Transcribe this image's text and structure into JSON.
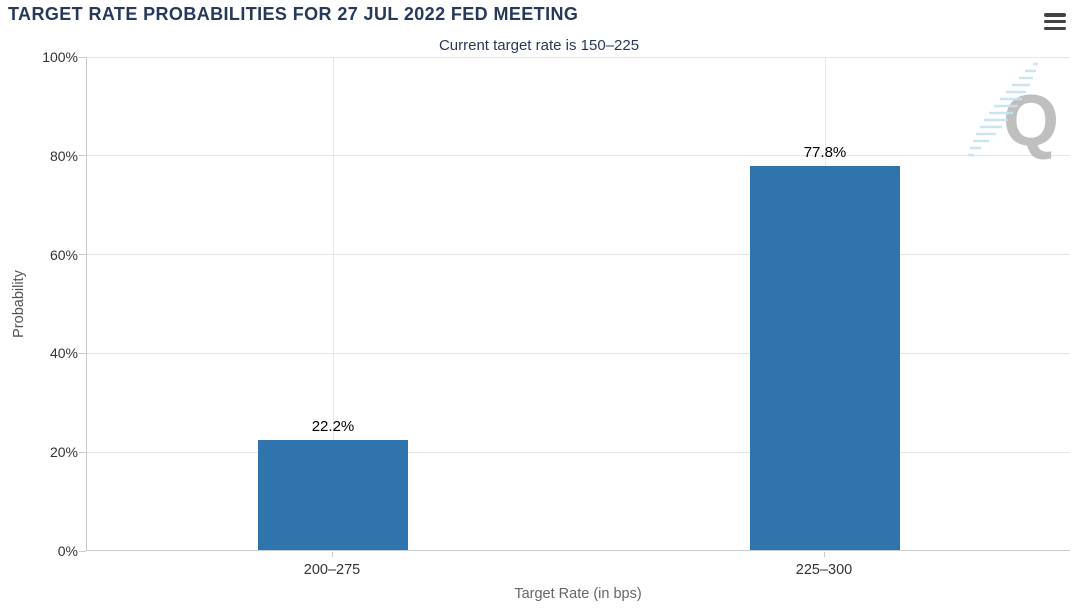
{
  "chart_data": {
    "type": "bar",
    "title": "TARGET RATE PROBABILITIES FOR 27 JUL 2022 FED MEETING",
    "subtitle": "Current target rate is 150–225",
    "categories": [
      "200–275",
      "225–300"
    ],
    "values": [
      22.2,
      77.8
    ],
    "value_labels": [
      "22.2%",
      "77.8%"
    ],
    "xlabel": "Target Rate (in bps)",
    "ylabel": "Probability",
    "ylim": [
      0,
      100
    ],
    "y_ticks": [
      0,
      20,
      40,
      60,
      80,
      100
    ],
    "y_tick_labels": [
      "0%",
      "20%",
      "40%",
      "60%",
      "80%",
      "100%"
    ],
    "grid": true,
    "legend_position": "none",
    "bar_color": "#2f74ad",
    "gridline_color": "#e6e6e6",
    "axis_line_color": "#c6cbd0",
    "tick_label_color": "#333333",
    "axis_title_color": "#666666",
    "data_label_color": "#000000",
    "title_color": "#26395b"
  },
  "menu": {
    "icon": "hamburger-menu-icon"
  },
  "watermark": {
    "icon": "quikstrike-logo",
    "letter": "Q"
  }
}
